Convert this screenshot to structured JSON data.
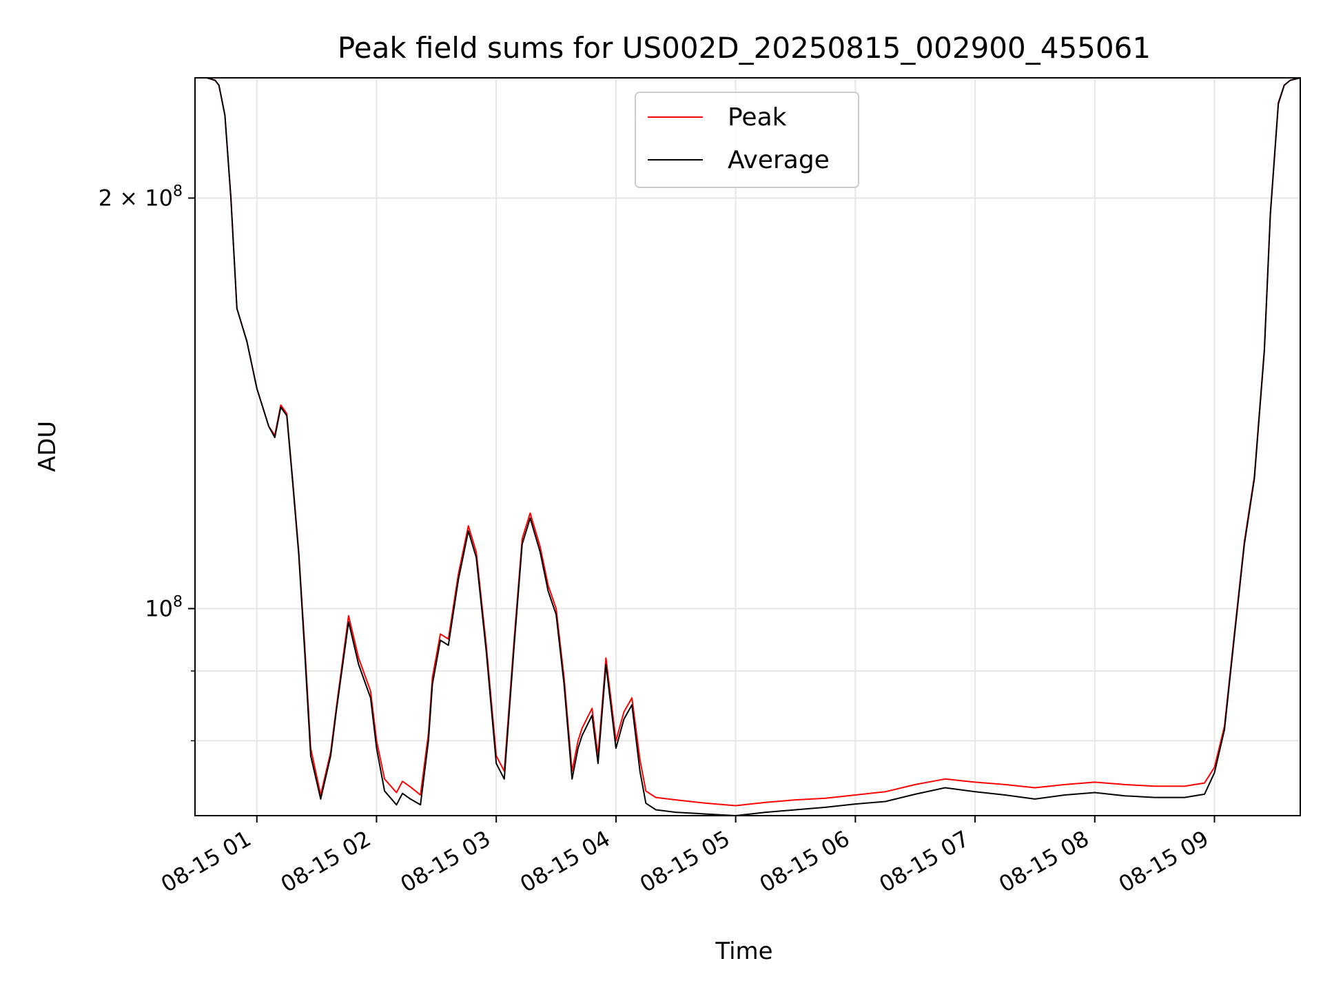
{
  "chart_data": {
    "type": "line",
    "title": "Peak field sums for US002D_20250815_002900_455061",
    "xlabel": "Time",
    "ylabel": "ADU",
    "yscale": "log",
    "ylim": [
      70500000,
      245000000
    ],
    "xlim": [
      "2025-08-15 00:29",
      "2025-08-15 09:43"
    ],
    "grid": true,
    "legend_position": "top-center",
    "x_ticks": [
      {
        "time": "2025-08-15 01:00",
        "label": "08-15 01"
      },
      {
        "time": "2025-08-15 02:00",
        "label": "08-15 02"
      },
      {
        "time": "2025-08-15 03:00",
        "label": "08-15 03"
      },
      {
        "time": "2025-08-15 04:00",
        "label": "08-15 04"
      },
      {
        "time": "2025-08-15 05:00",
        "label": "08-15 05"
      },
      {
        "time": "2025-08-15 06:00",
        "label": "08-15 06"
      },
      {
        "time": "2025-08-15 07:00",
        "label": "08-15 07"
      },
      {
        "time": "2025-08-15 08:00",
        "label": "08-15 08"
      },
      {
        "time": "2025-08-15 09:00",
        "label": "08-15 09"
      }
    ],
    "y_major_ticks": [
      {
        "value": 100000000,
        "mantissa": "",
        "base": "10",
        "exp": "8"
      },
      {
        "value": 200000000,
        "mantissa": "2 × ",
        "base": "10",
        "exp": "8"
      }
    ],
    "y_minor_ticks": [
      80000000,
      90000000
    ],
    "series": [
      {
        "name": "Peak",
        "color": "#ff0000",
        "x": [
          "2025-08-15 00:29",
          "2025-08-15 00:35",
          "2025-08-15 00:39",
          "2025-08-15 00:41",
          "2025-08-15 00:44",
          "2025-08-15 00:47",
          "2025-08-15 00:50",
          "2025-08-15 00:55",
          "2025-08-15 01:00",
          "2025-08-15 01:06",
          "2025-08-15 01:09",
          "2025-08-15 01:12",
          "2025-08-15 01:15",
          "2025-08-15 01:18",
          "2025-08-15 01:21",
          "2025-08-15 01:24",
          "2025-08-15 01:27",
          "2025-08-15 01:32",
          "2025-08-15 01:37",
          "2025-08-15 01:40",
          "2025-08-15 01:46",
          "2025-08-15 01:51",
          "2025-08-15 01:57",
          "2025-08-15 02:00",
          "2025-08-15 02:04",
          "2025-08-15 02:10",
          "2025-08-15 02:13",
          "2025-08-15 02:17",
          "2025-08-15 02:22",
          "2025-08-15 02:26",
          "2025-08-15 02:28",
          "2025-08-15 02:32",
          "2025-08-15 02:36",
          "2025-08-15 02:41",
          "2025-08-15 02:46",
          "2025-08-15 02:50",
          "2025-08-15 02:55",
          "2025-08-15 03:00",
          "2025-08-15 03:04",
          "2025-08-15 03:09",
          "2025-08-15 03:13",
          "2025-08-15 03:17",
          "2025-08-15 03:22",
          "2025-08-15 03:26",
          "2025-08-15 03:30",
          "2025-08-15 03:34",
          "2025-08-15 03:38",
          "2025-08-15 03:41",
          "2025-08-15 03:43",
          "2025-08-15 03:48",
          "2025-08-15 03:51",
          "2025-08-15 03:55",
          "2025-08-15 04:00",
          "2025-08-15 04:04",
          "2025-08-15 04:08",
          "2025-08-15 04:12",
          "2025-08-15 04:15",
          "2025-08-15 04:20",
          "2025-08-15 04:30",
          "2025-08-15 04:45",
          "2025-08-15 05:00",
          "2025-08-15 05:15",
          "2025-08-15 05:30",
          "2025-08-15 05:45",
          "2025-08-15 06:00",
          "2025-08-15 06:15",
          "2025-08-15 06:30",
          "2025-08-15 06:45",
          "2025-08-15 07:00",
          "2025-08-15 07:15",
          "2025-08-15 07:30",
          "2025-08-15 07:45",
          "2025-08-15 08:00",
          "2025-08-15 08:15",
          "2025-08-15 08:30",
          "2025-08-15 08:45",
          "2025-08-15 08:55",
          "2025-08-15 09:00",
          "2025-08-15 09:05",
          "2025-08-15 09:10",
          "2025-08-15 09:15",
          "2025-08-15 09:20",
          "2025-08-15 09:25",
          "2025-08-15 09:28",
          "2025-08-15 09:32",
          "2025-08-15 09:35",
          "2025-08-15 09:38",
          "2025-08-15 09:43"
        ],
        "y": [
          245000000,
          245000000,
          244000000,
          242000000,
          230000000,
          200000000,
          166000000,
          157000000,
          145000000,
          136000000,
          134000000,
          141000000,
          139000000,
          124000000,
          110000000,
          94000000,
          79000000,
          73000000,
          78500000,
          85000000,
          98800000,
          92000000,
          87000000,
          80000000,
          75000000,
          73300000,
          74700000,
          74000000,
          73000000,
          81000000,
          89000000,
          95800000,
          95000000,
          106000000,
          115000000,
          110000000,
          94000000,
          78000000,
          76000000,
          95000000,
          112500000,
          117500000,
          111000000,
          104000000,
          100000000,
          89000000,
          76000000,
          80000000,
          81700000,
          84500000,
          78000000,
          92000000,
          80000000,
          84000000,
          86000000,
          77500000,
          73500000,
          72700000,
          72400000,
          72000000,
          71700000,
          72100000,
          72400000,
          72600000,
          73000000,
          73400000,
          74300000,
          75000000,
          74600000,
          74300000,
          73900000,
          74300000,
          74600000,
          74300000,
          74100000,
          74100000,
          74500000,
          76500000,
          82000000,
          96000000,
          112000000,
          125000000,
          155000000,
          195000000,
          235000000,
          242000000,
          244000000,
          245000000
        ]
      },
      {
        "name": "Average",
        "color": "#000000",
        "x": [
          "2025-08-15 00:29",
          "2025-08-15 00:35",
          "2025-08-15 00:39",
          "2025-08-15 00:41",
          "2025-08-15 00:44",
          "2025-08-15 00:47",
          "2025-08-15 00:50",
          "2025-08-15 00:55",
          "2025-08-15 01:00",
          "2025-08-15 01:06",
          "2025-08-15 01:09",
          "2025-08-15 01:12",
          "2025-08-15 01:15",
          "2025-08-15 01:18",
          "2025-08-15 01:21",
          "2025-08-15 01:24",
          "2025-08-15 01:27",
          "2025-08-15 01:32",
          "2025-08-15 01:37",
          "2025-08-15 01:40",
          "2025-08-15 01:46",
          "2025-08-15 01:51",
          "2025-08-15 01:57",
          "2025-08-15 02:00",
          "2025-08-15 02:04",
          "2025-08-15 02:10",
          "2025-08-15 02:13",
          "2025-08-15 02:17",
          "2025-08-15 02:22",
          "2025-08-15 02:26",
          "2025-08-15 02:28",
          "2025-08-15 02:32",
          "2025-08-15 02:36",
          "2025-08-15 02:41",
          "2025-08-15 02:46",
          "2025-08-15 02:50",
          "2025-08-15 02:55",
          "2025-08-15 03:00",
          "2025-08-15 03:04",
          "2025-08-15 03:09",
          "2025-08-15 03:13",
          "2025-08-15 03:17",
          "2025-08-15 03:22",
          "2025-08-15 03:26",
          "2025-08-15 03:30",
          "2025-08-15 03:34",
          "2025-08-15 03:38",
          "2025-08-15 03:41",
          "2025-08-15 03:43",
          "2025-08-15 03:48",
          "2025-08-15 03:51",
          "2025-08-15 03:55",
          "2025-08-15 04:00",
          "2025-08-15 04:04",
          "2025-08-15 04:08",
          "2025-08-15 04:12",
          "2025-08-15 04:15",
          "2025-08-15 04:20",
          "2025-08-15 04:30",
          "2025-08-15 04:45",
          "2025-08-15 05:00",
          "2025-08-15 05:15",
          "2025-08-15 05:30",
          "2025-08-15 05:45",
          "2025-08-15 06:00",
          "2025-08-15 06:15",
          "2025-08-15 06:30",
          "2025-08-15 06:45",
          "2025-08-15 07:00",
          "2025-08-15 07:15",
          "2025-08-15 07:30",
          "2025-08-15 07:45",
          "2025-08-15 08:00",
          "2025-08-15 08:15",
          "2025-08-15 08:30",
          "2025-08-15 08:45",
          "2025-08-15 08:55",
          "2025-08-15 09:00",
          "2025-08-15 09:05",
          "2025-08-15 09:10",
          "2025-08-15 09:15",
          "2025-08-15 09:20",
          "2025-08-15 09:25",
          "2025-08-15 09:28",
          "2025-08-15 09:32",
          "2025-08-15 09:35",
          "2025-08-15 09:38",
          "2025-08-15 09:43"
        ],
        "y": [
          245000000,
          245000000,
          244000000,
          242000000,
          230000000,
          200000000,
          166000000,
          157000000,
          145000000,
          136000000,
          133500000,
          140500000,
          138500000,
          123500000,
          109500000,
          93000000,
          78000000,
          72500000,
          78000000,
          84500000,
          97800000,
          91000000,
          86000000,
          79000000,
          73500000,
          71800000,
          73200000,
          72500000,
          71800000,
          80000000,
          88000000,
          94800000,
          94000000,
          105000000,
          114000000,
          109000000,
          93000000,
          77000000,
          75000000,
          94000000,
          111500000,
          116500000,
          110000000,
          103000000,
          99000000,
          88000000,
          75000000,
          79000000,
          80700000,
          83500000,
          77000000,
          91000000,
          79000000,
          83000000,
          85000000,
          76000000,
          72000000,
          71200000,
          70900000,
          70700000,
          70500000,
          70900000,
          71200000,
          71500000,
          71900000,
          72200000,
          73100000,
          73900000,
          73400000,
          73000000,
          72500000,
          73000000,
          73300000,
          72900000,
          72700000,
          72700000,
          73100000,
          75800000,
          81500000,
          95500000,
          111500000,
          124500000,
          154500000,
          194500000,
          234500000,
          242000000,
          244000000,
          245000000
        ]
      }
    ]
  }
}
